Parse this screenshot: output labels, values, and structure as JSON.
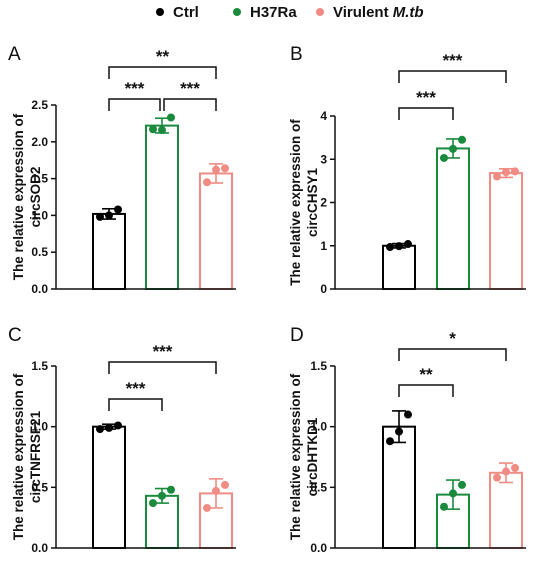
{
  "legend": [
    {
      "label": "Ctrl",
      "color": "#000000"
    },
    {
      "label": "H37Ra",
      "color": "#1a8a3c"
    },
    {
      "label": "Virulent ",
      "italic": "M.tb",
      "color": "#f08c84"
    }
  ],
  "chart_data": [
    {
      "panel": "A",
      "type": "bar",
      "categories": [
        "Ctrl",
        "H37Ra",
        "Virulent M.tb"
      ],
      "colors": [
        "#000000",
        "#1a8a3c",
        "#f08c84"
      ],
      "values": [
        1.02,
        2.22,
        1.57
      ],
      "errors": [
        0.07,
        0.1,
        0.13
      ],
      "points": [
        [
          0.98,
          1.0,
          1.08
        ],
        [
          2.17,
          2.16,
          2.33
        ],
        [
          1.45,
          1.62,
          1.64
        ]
      ],
      "ylabel_lines": [
        "The relative expression of",
        "circSOD2"
      ],
      "ylim": [
        0,
        2.5
      ],
      "yticks": [
        "0.0",
        "0.5",
        "1.0",
        "1.5",
        "2.0",
        "2.5"
      ],
      "significance": [
        {
          "from": 0,
          "to": 1,
          "label": "***",
          "tier": 1
        },
        {
          "from": 1,
          "to": 2,
          "label": "***",
          "tier": 1
        },
        {
          "from": 0,
          "to": 2,
          "label": "**",
          "tier": 2
        }
      ]
    },
    {
      "panel": "B",
      "type": "bar",
      "categories": [
        "Ctrl",
        "H37Ra",
        "Virulent M.tb"
      ],
      "colors": [
        "#000000",
        "#1a8a3c",
        "#f08c84"
      ],
      "values": [
        1.0,
        3.25,
        2.68
      ],
      "errors": [
        0.05,
        0.22,
        0.1
      ],
      "points": [
        [
          0.97,
          0.99,
          1.04
        ],
        [
          3.03,
          3.24,
          3.45
        ],
        [
          2.6,
          2.7,
          2.72
        ]
      ],
      "ylabel_lines": [
        "The relative expression of",
        "circCHSY1"
      ],
      "ylim": [
        0,
        4
      ],
      "yticks": [
        "0",
        "1",
        "2",
        "3",
        "4"
      ],
      "significance": [
        {
          "from": 0,
          "to": 1,
          "label": "***",
          "tier": 1
        },
        {
          "from": 0,
          "to": 2,
          "label": "***",
          "tier": 2
        }
      ]
    },
    {
      "panel": "C",
      "type": "bar",
      "categories": [
        "Ctrl",
        "H37Ra",
        "Virulent M.tb"
      ],
      "colors": [
        "#000000",
        "#1a8a3c",
        "#f08c84"
      ],
      "values": [
        1.0,
        0.43,
        0.45
      ],
      "errors": [
        0.02,
        0.06,
        0.12
      ],
      "points": [
        [
          0.98,
          0.99,
          1.01
        ],
        [
          0.37,
          0.43,
          0.48
        ],
        [
          0.33,
          0.47,
          0.52
        ]
      ],
      "ylabel_lines": [
        "The relative expression of",
        "circTNFRSF21"
      ],
      "ylim": [
        0,
        1.5
      ],
      "yticks": [
        "0.0",
        "0.5",
        "1.0",
        "1.5"
      ],
      "significance": [
        {
          "from": 0,
          "to": 1,
          "label": "***",
          "tier": 1
        },
        {
          "from": 0,
          "to": 2,
          "label": "***",
          "tier": 2
        }
      ]
    },
    {
      "panel": "D",
      "type": "bar",
      "categories": [
        "Ctrl",
        "H37Ra",
        "Virulent M.tb"
      ],
      "colors": [
        "#000000",
        "#1a8a3c",
        "#f08c84"
      ],
      "values": [
        1.0,
        0.44,
        0.62
      ],
      "errors": [
        0.13,
        0.12,
        0.08
      ],
      "points": [
        [
          0.88,
          0.96,
          1.1
        ],
        [
          0.34,
          0.45,
          0.52
        ],
        [
          0.58,
          0.63,
          0.66
        ]
      ],
      "ylabel_lines": [
        "The relative expression of",
        "circDHTKD1"
      ],
      "ylim": [
        0,
        1.5
      ],
      "yticks": [
        "0.0",
        "0.5",
        "1.0",
        "1.5"
      ],
      "significance": [
        {
          "from": 0,
          "to": 1,
          "label": "**",
          "tier": 1
        },
        {
          "from": 0,
          "to": 2,
          "label": "*",
          "tier": 2
        }
      ]
    }
  ]
}
